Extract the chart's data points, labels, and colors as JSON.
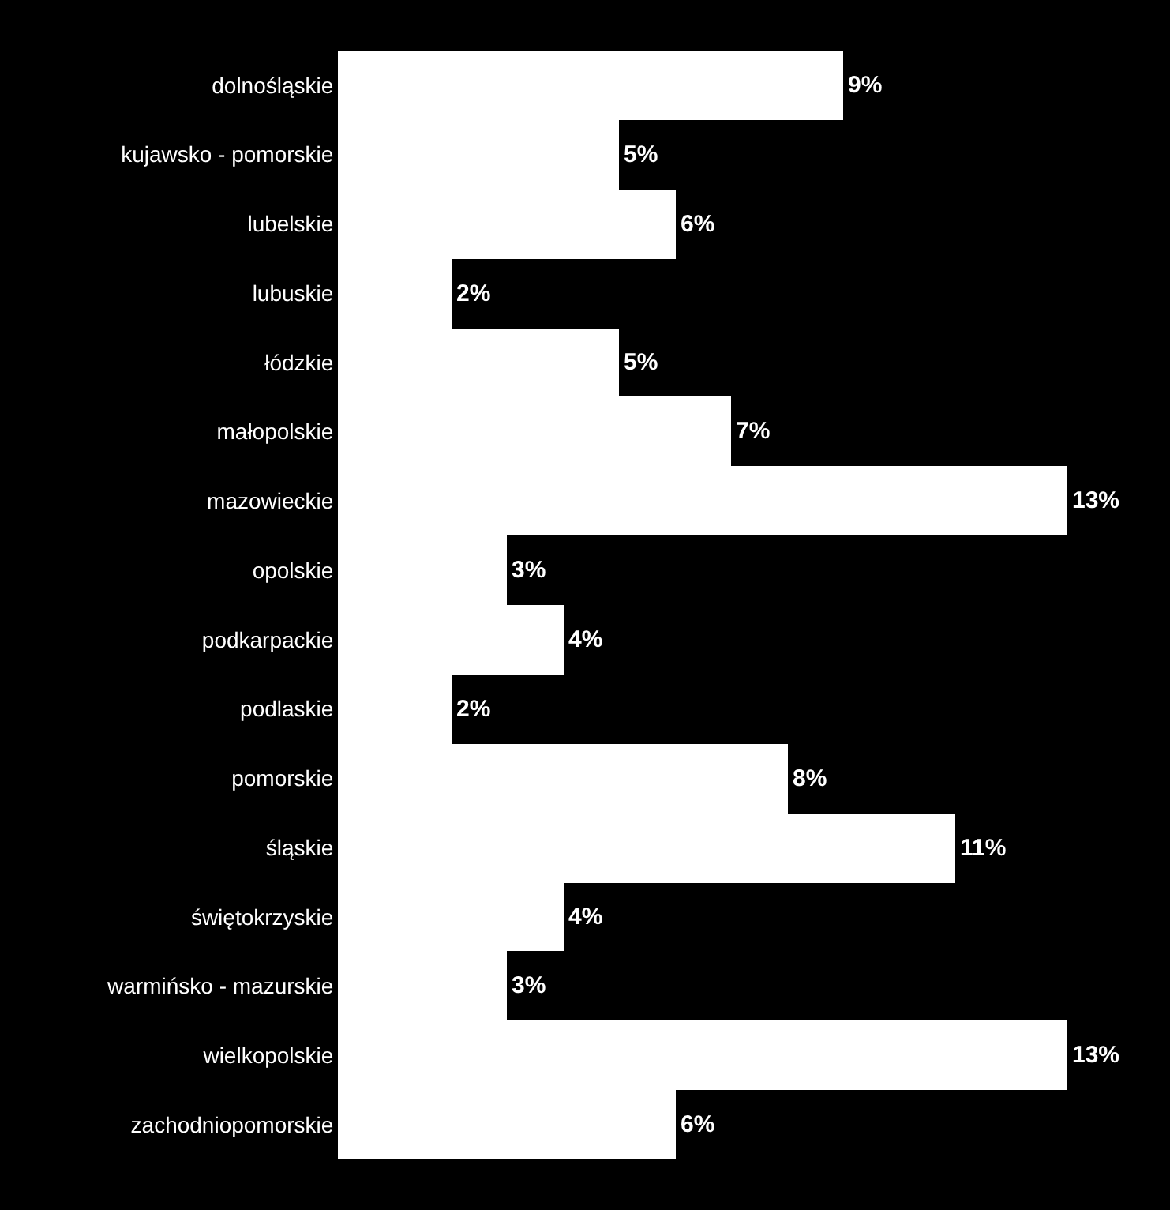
{
  "chart_data": {
    "type": "bar",
    "orientation": "horizontal",
    "categories": [
      "dolnośląskie",
      "kujawsko - pomorskie",
      "lubelskie",
      "lubuskie",
      "łódzkie",
      "małopolskie",
      "mazowieckie",
      "opolskie",
      "podkarpackie",
      "podlaskie",
      "pomorskie",
      "śląskie",
      "świętokrzyskie",
      "warmińsko - mazurskie",
      "wielkopolskie",
      "zachodniopomorskie"
    ],
    "values": [
      9,
      5,
      6,
      2,
      5,
      7,
      13,
      3,
      4,
      2,
      8,
      11,
      4,
      3,
      13,
      6
    ],
    "value_labels": [
      "9%",
      "5%",
      "6%",
      "2%",
      "5%",
      "7%",
      "13%",
      "3%",
      "4%",
      "2%",
      "8%",
      "11%",
      "4%",
      "3%",
      "13%",
      "6%"
    ],
    "color": "#ffffff",
    "tick_labels": "y"
  }
}
